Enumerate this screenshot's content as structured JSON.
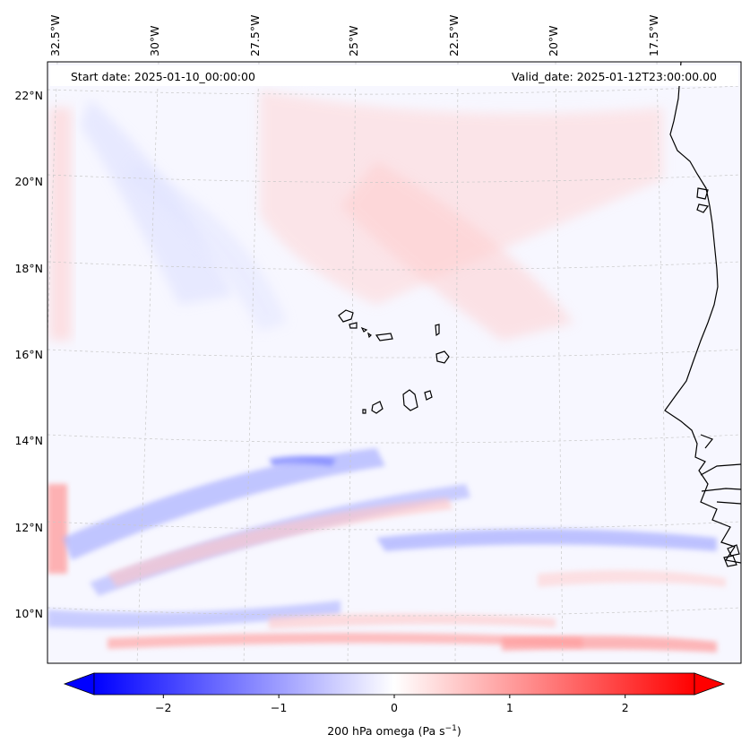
{
  "header": {
    "start_date": "Start date: 2025-01-10_00:00:00",
    "valid_date": "Valid_date: 2025-01-12T23:00:00.00"
  },
  "axes": {
    "lon_labels": [
      "32.5°W",
      "30°W",
      "27.5°W",
      "25°W",
      "22.5°W",
      "20°W",
      "17.5°W"
    ],
    "lat_labels": [
      "22°N",
      "20°N",
      "18°N",
      "16°N",
      "14°N",
      "12°N",
      "10°N"
    ]
  },
  "colorbar": {
    "label_main": "200 hPa omega (Pa s",
    "label_exp": "−1",
    "label_close": ")",
    "ticks": [
      "−2",
      "−1",
      "0",
      "1",
      "2"
    ],
    "vmin": -2.6,
    "vmax": 2.6,
    "colors": {
      "neg": "#0000ff",
      "zero": "#ffffff",
      "pos": "#ff0000"
    }
  },
  "map": {
    "projection": "Lambert-like conic",
    "features": [
      "coastline",
      "gridlines",
      "filled omega contours"
    ],
    "grid": "dashed gray"
  }
}
